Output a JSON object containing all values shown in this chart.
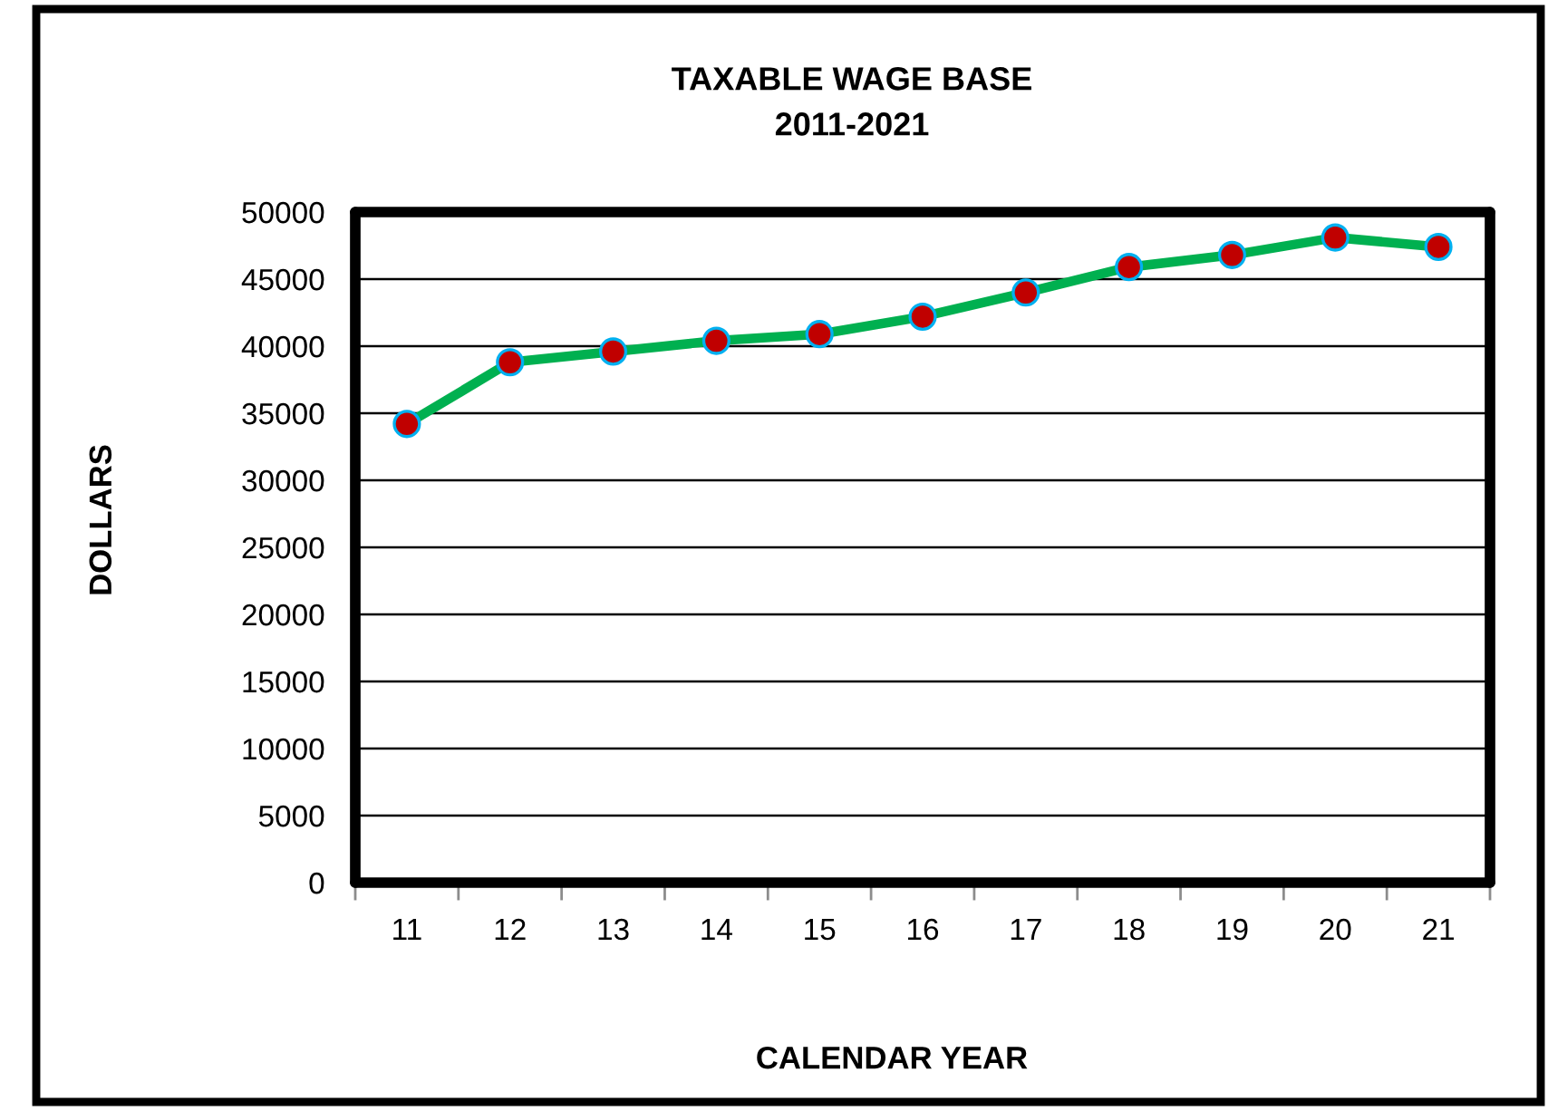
{
  "chart_data": {
    "type": "line",
    "title": "TAXABLE WAGE BASE",
    "subtitle": "2011-2021",
    "xlabel": "CALENDAR YEAR",
    "ylabel": "DOLLARS",
    "categories": [
      "11",
      "12",
      "13",
      "14",
      "15",
      "16",
      "17",
      "18",
      "19",
      "20",
      "21"
    ],
    "series": [
      {
        "color": "#00b050",
        "values": [
          34200,
          38800,
          39600,
          40400,
          40900,
          42200,
          44000,
          45900,
          46800,
          48100,
          47400
        ]
      }
    ],
    "ylim": [
      0,
      50000
    ],
    "yticks": [
      0,
      5000,
      10000,
      15000,
      20000,
      25000,
      30000,
      35000,
      40000,
      45000,
      50000
    ],
    "grid": "y",
    "marker": "circle",
    "line_style": "solid"
  }
}
